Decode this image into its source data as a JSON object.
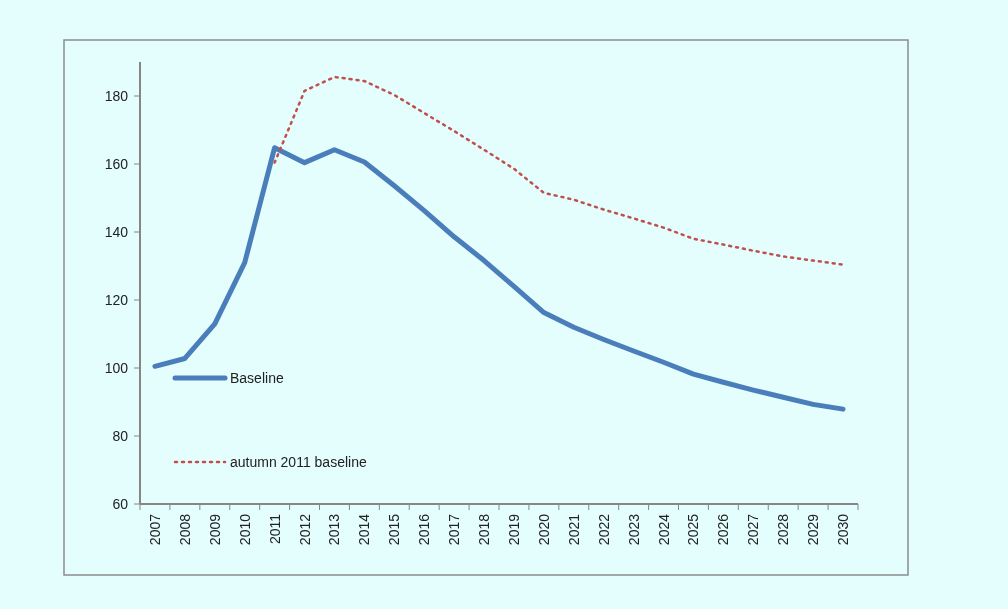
{
  "chart_data": {
    "type": "line",
    "categories": [
      "2007",
      "2008",
      "2009",
      "2010",
      "2011",
      "2012",
      "2013",
      "2014",
      "2015",
      "2016",
      "2017",
      "2018",
      "2019",
      "2020",
      "2021",
      "2022",
      "2023",
      "2024",
      "2025",
      "2026",
      "2027",
      "2028",
      "2029",
      "2030"
    ],
    "series": [
      {
        "name": "Baseline",
        "color": "#4a7ebb",
        "line_style": "solid",
        "values": [
          100.5,
          102.8,
          113,
          131,
          164.8,
          160.4,
          164.2,
          160.6,
          153.6,
          146.3,
          138.6,
          131.6,
          124,
          116.3,
          112,
          108.4,
          105,
          101.7,
          98.2,
          95.8,
          93.5,
          91.4,
          89.3,
          87.9
        ]
      },
      {
        "name": "autumn 2011 baseline",
        "color": "#c0504d",
        "line_style": "dotted",
        "values": [
          null,
          null,
          null,
          null,
          160.4,
          181.5,
          185.6,
          184.4,
          180.3,
          175,
          169.7,
          164.2,
          158.6,
          151.5,
          149.5,
          146.6,
          144,
          141.3,
          138,
          136.3,
          134.5,
          132.8,
          131.6,
          130.4
        ]
      }
    ],
    "ylim": [
      60,
      190
    ],
    "yticks": [
      60,
      80,
      100,
      120,
      140,
      160,
      180
    ],
    "grid": false,
    "legend": "bottom left",
    "marker": "none"
  }
}
